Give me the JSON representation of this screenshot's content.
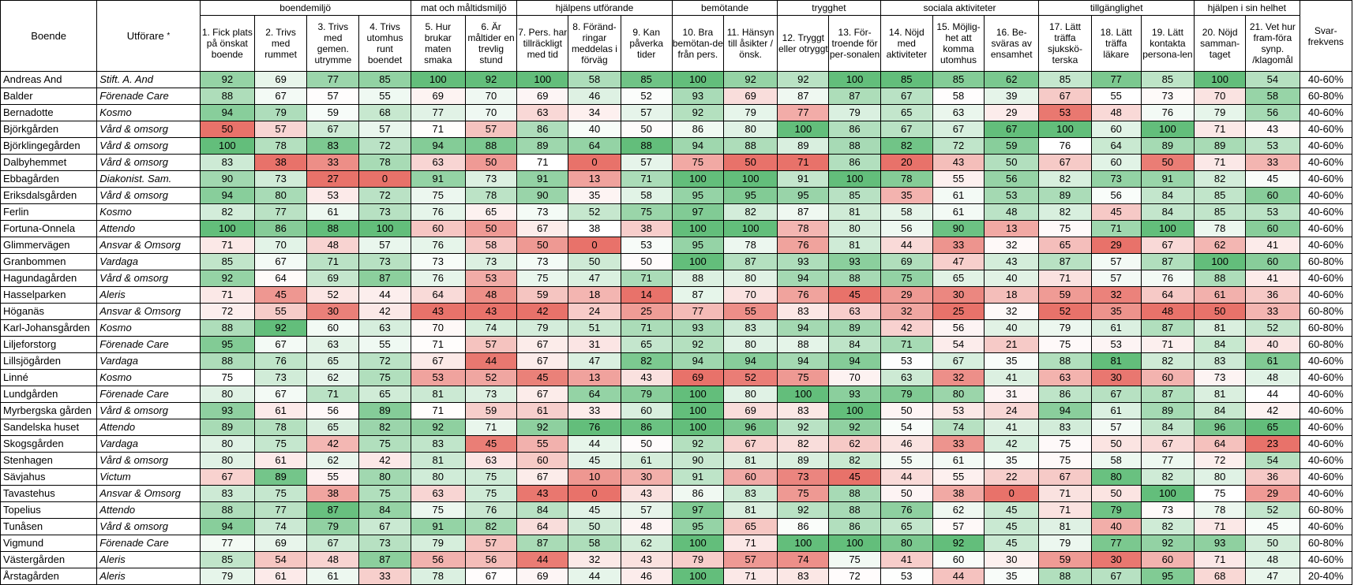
{
  "chart_data": {
    "type": "table",
    "header_boende": "Boende",
    "header_utforare": "Utförare",
    "header_utforare_mark": "*",
    "header_svar": "Svar-frekvens",
    "groups": [
      {
        "label": "boendemiljö",
        "span": 4
      },
      {
        "label": "mat och måltidsmiljö",
        "span": 2
      },
      {
        "label": "hjälpens utförande",
        "span": 3
      },
      {
        "label": "bemötande",
        "span": 2
      },
      {
        "label": "trygghet",
        "span": 2
      },
      {
        "label": "sociala aktiviteter",
        "span": 3
      },
      {
        "label": "tillgänglighet",
        "span": 3
      },
      {
        "label": "hjälpen i sin helhet",
        "span": 2
      }
    ],
    "columns": [
      "1. Fick plats på önskat boende",
      "2. Trivs med rummet",
      "3. Trivs med gemen. utrymme",
      "4. Trivs utomhus runt boendet",
      "5. Hur brukar maten smaka",
      "6. Är måltider en trevlig stund",
      "7. Pers. har tillräckligt med tid",
      "8. Föränd-ringar meddelas i förväg",
      "9. Kan påverka tider",
      "10. Bra bemötan-de från pers.",
      "11. Hänsyn till åsikter / önsk.",
      "12. Tryggt eller otryggt",
      "13. För-troende för per-sonalen",
      "14. Nöjd med aktiviteter",
      "15. Möjlig-het att komma utomhus",
      "16. Be-sväras av ensamhet",
      "17. Lätt träffa sjukskö-terska",
      "18. Lätt träffa läkare",
      "19. Lätt kontakta persona-len",
      "20. Nöjd samman-taget",
      "21. Vet hur fram-föra synp. /klagomål"
    ],
    "rows": [
      {
        "name": "Andreas And",
        "provider": "Stift. A. And",
        "values": [
          92,
          69,
          77,
          85,
          100,
          92,
          100,
          58,
          85,
          100,
          92,
          92,
          100,
          85,
          85,
          62,
          85,
          77,
          85,
          100,
          54
        ],
        "rate": "40-60%"
      },
      {
        "name": "Balder",
        "provider": "Förenade Care",
        "values": [
          88,
          67,
          57,
          55,
          69,
          70,
          69,
          46,
          52,
          93,
          69,
          87,
          87,
          67,
          58,
          39,
          67,
          55,
          73,
          70,
          58
        ],
        "rate": "60-80%"
      },
      {
        "name": "Bernadotte",
        "provider": "Kosmo",
        "values": [
          94,
          79,
          59,
          68,
          77,
          70,
          63,
          34,
          57,
          92,
          79,
          77,
          79,
          65,
          63,
          29,
          53,
          48,
          76,
          79,
          56
        ],
        "rate": "40-60%"
      },
      {
        "name": "Björkgården",
        "provider": "Vård & omsorg",
        "values": [
          50,
          57,
          67,
          57,
          71,
          57,
          86,
          40,
          50,
          86,
          80,
          100,
          86,
          67,
          67,
          67,
          100,
          60,
          100,
          71,
          43
        ],
        "rate": "40-60%"
      },
      {
        "name": "Björklingegården",
        "provider": "Vård & omsorg",
        "values": [
          100,
          78,
          83,
          72,
          94,
          88,
          89,
          64,
          88,
          94,
          88,
          89,
          88,
          82,
          72,
          59,
          76,
          64,
          89,
          89,
          53
        ],
        "rate": "40-60%"
      },
      {
        "name": "Dalbyhemmet",
        "provider": "Vård & omsorg",
        "values": [
          83,
          38,
          33,
          78,
          63,
          50,
          71,
          0,
          57,
          75,
          50,
          71,
          86,
          20,
          43,
          50,
          67,
          60,
          50,
          71,
          33
        ],
        "rate": "40-60%"
      },
      {
        "name": "Ebbagården",
        "provider": "Diakonist. Sam.",
        "values": [
          90,
          73,
          27,
          0,
          91,
          73,
          91,
          13,
          71,
          100,
          100,
          91,
          100,
          78,
          55,
          56,
          82,
          73,
          91,
          82,
          45
        ],
        "rate": "40-60%"
      },
      {
        "name": "Eriksdalsgården",
        "provider": "Vård & omsorg",
        "values": [
          94,
          80,
          53,
          72,
          75,
          78,
          90,
          35,
          58,
          95,
          95,
          95,
          85,
          35,
          61,
          53,
          89,
          56,
          84,
          85,
          60
        ],
        "rate": "40-60%"
      },
      {
        "name": "Ferlin",
        "provider": "Kosmo",
        "values": [
          82,
          77,
          61,
          73,
          76,
          65,
          73,
          52,
          75,
          97,
          82,
          87,
          81,
          58,
          61,
          48,
          82,
          45,
          84,
          85,
          53
        ],
        "rate": "40-60%"
      },
      {
        "name": "Fortuna-Onnela",
        "provider": "Attendo",
        "values": [
          100,
          86,
          88,
          100,
          60,
          50,
          67,
          38,
          38,
          100,
          100,
          78,
          80,
          56,
          90,
          13,
          75,
          71,
          100,
          78,
          60
        ],
        "rate": "40-60%"
      },
      {
        "name": "Glimmervägen",
        "provider": "Ansvar & Omsorg",
        "values": [
          71,
          70,
          48,
          57,
          76,
          58,
          50,
          0,
          53,
          95,
          78,
          76,
          81,
          44,
          33,
          32,
          65,
          29,
          67,
          62,
          41
        ],
        "rate": "40-60%"
      },
      {
        "name": "Granbommen",
        "provider": "Vardaga",
        "values": [
          85,
          67,
          71,
          73,
          73,
          73,
          73,
          50,
          50,
          100,
          87,
          93,
          93,
          69,
          47,
          43,
          87,
          57,
          87,
          100,
          60
        ],
        "rate": "60-80%"
      },
      {
        "name": "Hagundagården",
        "provider": "Vård & omsorg",
        "values": [
          92,
          64,
          69,
          87,
          76,
          53,
          75,
          47,
          71,
          88,
          80,
          94,
          88,
          75,
          65,
          40,
          71,
          57,
          76,
          88,
          41
        ],
        "rate": "40-60%"
      },
      {
        "name": "Hasselparken",
        "provider": "Aleris",
        "values": [
          71,
          45,
          52,
          44,
          64,
          48,
          59,
          18,
          14,
          87,
          70,
          76,
          45,
          29,
          30,
          18,
          59,
          32,
          64,
          61,
          36
        ],
        "rate": "40-60%"
      },
      {
        "name": "Höganäs",
        "provider": "Ansvar & Omsorg",
        "values": [
          72,
          55,
          30,
          42,
          43,
          43,
          42,
          24,
          25,
          77,
          55,
          83,
          63,
          32,
          25,
          32,
          52,
          35,
          48,
          50,
          33
        ],
        "rate": "60-80%"
      },
      {
        "name": "Karl-Johansgården",
        "provider": "Kosmo",
        "values": [
          88,
          92,
          60,
          63,
          70,
          74,
          79,
          51,
          71,
          93,
          83,
          94,
          89,
          42,
          56,
          40,
          79,
          61,
          87,
          81,
          52
        ],
        "rate": "60-80%"
      },
      {
        "name": "Liljeforstorg",
        "provider": "Förenade Care",
        "values": [
          95,
          67,
          63,
          55,
          71,
          57,
          67,
          31,
          65,
          92,
          80,
          88,
          84,
          71,
          54,
          21,
          75,
          53,
          71,
          84,
          40
        ],
        "rate": "60-80%"
      },
      {
        "name": "Lillsjögården",
        "provider": "Vardaga",
        "values": [
          88,
          76,
          65,
          72,
          67,
          44,
          67,
          47,
          82,
          94,
          94,
          94,
          94,
          53,
          67,
          35,
          88,
          81,
          82,
          83,
          61
        ],
        "rate": "40-60%"
      },
      {
        "name": "Linné",
        "provider": "Kosmo",
        "values": [
          75,
          73,
          62,
          75,
          53,
          52,
          45,
          13,
          43,
          69,
          52,
          75,
          70,
          63,
          32,
          41,
          63,
          30,
          60,
          73,
          48
        ],
        "rate": "40-60%"
      },
      {
        "name": "Lundgården",
        "provider": "Förenade Care",
        "values": [
          80,
          67,
          71,
          65,
          81,
          73,
          67,
          64,
          79,
          100,
          80,
          100,
          93,
          79,
          80,
          31,
          86,
          67,
          87,
          81,
          44
        ],
        "rate": "40-60%"
      },
      {
        "name": "Myrbergska gården",
        "provider": "Vård & omsorg",
        "values": [
          93,
          61,
          56,
          89,
          71,
          59,
          61,
          33,
          60,
          100,
          69,
          83,
          100,
          50,
          53,
          24,
          94,
          61,
          89,
          84,
          42
        ],
        "rate": "40-60%"
      },
      {
        "name": "Sandelska huset",
        "provider": "Attendo",
        "values": [
          89,
          78,
          65,
          82,
          92,
          71,
          92,
          76,
          86,
          100,
          96,
          92,
          92,
          54,
          74,
          41,
          83,
          57,
          84,
          96,
          65
        ],
        "rate": "40-60%"
      },
      {
        "name": "Skogsgården",
        "provider": "Vardaga",
        "values": [
          80,
          75,
          42,
          75,
          83,
          45,
          55,
          44,
          50,
          92,
          67,
          82,
          62,
          46,
          33,
          42,
          75,
          50,
          67,
          64,
          23
        ],
        "rate": "40-60%"
      },
      {
        "name": "Stenhagen",
        "provider": "Vård & omsorg",
        "values": [
          80,
          61,
          62,
          42,
          81,
          63,
          60,
          45,
          61,
          90,
          81,
          89,
          82,
          55,
          61,
          35,
          75,
          58,
          77,
          72,
          54
        ],
        "rate": "40-60%"
      },
      {
        "name": "Sävjahus",
        "provider": "Victum",
        "values": [
          67,
          89,
          55,
          80,
          80,
          75,
          67,
          10,
          30,
          91,
          60,
          73,
          45,
          44,
          55,
          22,
          67,
          80,
          82,
          80,
          36
        ],
        "rate": "40-60%"
      },
      {
        "name": "Tavastehus",
        "provider": "Ansvar & Omsorg",
        "values": [
          83,
          75,
          38,
          75,
          63,
          75,
          43,
          0,
          43,
          86,
          83,
          75,
          88,
          50,
          38,
          0,
          71,
          50,
          100,
          75,
          29
        ],
        "rate": "40-60%"
      },
      {
        "name": "Topelius",
        "provider": "Attendo",
        "values": [
          88,
          77,
          87,
          84,
          75,
          76,
          84,
          45,
          57,
          97,
          81,
          92,
          88,
          76,
          62,
          45,
          71,
          79,
          73,
          78,
          52
        ],
        "rate": "60-80%"
      },
      {
        "name": "Tunåsen",
        "provider": "Vård & omsorg",
        "values": [
          94,
          74,
          79,
          67,
          91,
          82,
          64,
          50,
          48,
          95,
          65,
          86,
          86,
          65,
          57,
          45,
          81,
          40,
          82,
          71,
          45
        ],
        "rate": "40-60%"
      },
      {
        "name": "Vigmund",
        "provider": "Förenade Care",
        "values": [
          77,
          69,
          67,
          73,
          79,
          57,
          87,
          58,
          62,
          100,
          71,
          100,
          100,
          80,
          92,
          45,
          79,
          77,
          92,
          93,
          50
        ],
        "rate": "60-80%"
      },
      {
        "name": "Västergården",
        "provider": "Aleris",
        "values": [
          85,
          54,
          48,
          87,
          56,
          56,
          44,
          32,
          43,
          79,
          57,
          74,
          75,
          41,
          60,
          30,
          59,
          30,
          60,
          71,
          48
        ],
        "rate": "40-60%"
      },
      {
        "name": "Årstagården",
        "provider": "Aleris",
        "values": [
          79,
          61,
          61,
          33,
          78,
          67,
          69,
          44,
          46,
          100,
          71,
          83,
          72,
          53,
          44,
          35,
          88,
          67,
          95,
          68,
          47
        ],
        "rate": "20-40%"
      }
    ],
    "color_scale": {
      "low": "#e8726a",
      "mid": "#ffffff",
      "high": "#63be7b"
    }
  }
}
